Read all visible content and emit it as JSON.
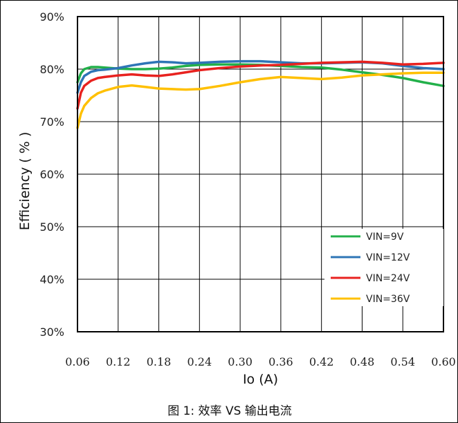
{
  "chart_data": {
    "type": "line",
    "xlabel": "Io (A)",
    "ylabel": "Efficiency ( % )",
    "xlim": [
      0.06,
      0.6
    ],
    "ylim": [
      30,
      90
    ],
    "x_ticks": [
      "0.06",
      "0.12",
      "0.18",
      "0.24",
      "0.30",
      "0.36",
      "0.42",
      "0.48",
      "0.54",
      "0.60"
    ],
    "y_ticks": [
      "30%",
      "40%",
      "50%",
      "60%",
      "70%",
      "80%",
      "90%"
    ],
    "grid": true,
    "legend_position": "bottom-right",
    "x": [
      0.06,
      0.065,
      0.07,
      0.08,
      0.09,
      0.1,
      0.12,
      0.14,
      0.16,
      0.18,
      0.2,
      0.22,
      0.24,
      0.27,
      0.3,
      0.33,
      0.36,
      0.39,
      0.42,
      0.45,
      0.48,
      0.51,
      0.54,
      0.57,
      0.6
    ],
    "series": [
      {
        "name": "VIN=9V",
        "color": "#22b04a",
        "values": [
          77.5,
          79.2,
          80.0,
          80.4,
          80.4,
          80.3,
          80.1,
          80.0,
          80.0,
          80.1,
          80.3,
          80.6,
          80.8,
          80.9,
          80.9,
          80.8,
          80.6,
          80.4,
          80.3,
          79.9,
          79.4,
          78.9,
          78.3,
          77.5,
          76.8
        ]
      },
      {
        "name": "VIN=12V",
        "color": "#2e75b6",
        "values": [
          75.5,
          77.5,
          78.7,
          79.5,
          79.8,
          79.9,
          80.2,
          80.7,
          81.1,
          81.4,
          81.3,
          81.1,
          81.2,
          81.4,
          81.5,
          81.5,
          81.3,
          81.1,
          81.1,
          81.2,
          81.3,
          81.1,
          80.6,
          80.2,
          80.0
        ]
      },
      {
        "name": "VIN=24V",
        "color": "#e8221f",
        "values": [
          72.5,
          75.5,
          76.8,
          77.8,
          78.3,
          78.5,
          78.8,
          79.0,
          78.8,
          78.7,
          79.0,
          79.4,
          79.8,
          80.2,
          80.5,
          80.7,
          80.8,
          81.0,
          81.2,
          81.3,
          81.4,
          81.2,
          80.9,
          81.0,
          81.2
        ]
      },
      {
        "name": "VIN=36V",
        "color": "#ffc000",
        "values": [
          68.8,
          71.5,
          73.0,
          74.5,
          75.4,
          75.9,
          76.6,
          76.9,
          76.6,
          76.3,
          76.2,
          76.1,
          76.2,
          76.8,
          77.5,
          78.1,
          78.5,
          78.3,
          78.1,
          78.4,
          78.8,
          79.0,
          79.2,
          79.3,
          79.3
        ]
      }
    ]
  },
  "caption": "图 1: 效率 VS 输出电流"
}
